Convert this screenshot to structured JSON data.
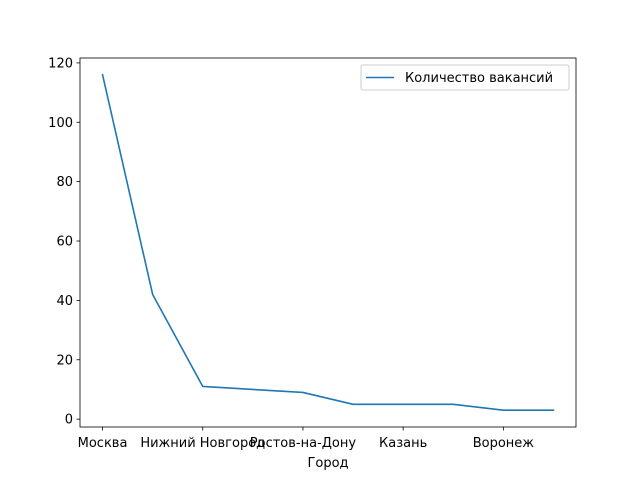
{
  "chart_data": {
    "type": "line",
    "categories": [
      "Москва",
      "Нижний Новгород",
      "Ростов-на-Дону",
      "Казань",
      "Воронеж"
    ],
    "x": [
      0,
      1,
      2,
      3,
      4,
      5,
      6,
      7,
      8,
      9
    ],
    "series": [
      {
        "name": "Количество вакансий",
        "values": [
          116,
          42,
          11,
          10,
          9,
          5,
          5,
          5,
          3,
          3
        ],
        "color": "#1f77b4"
      }
    ],
    "xticks": [
      0,
      2,
      4,
      6,
      8
    ],
    "yticks": [
      0,
      20,
      40,
      60,
      80,
      100,
      120
    ],
    "xlabel": "Город",
    "ylabel": "",
    "title": "",
    "xlim": [
      -0.45,
      9.45
    ],
    "ylim": [
      -2.65,
      121.65
    ],
    "grid": false,
    "legend_position": "upper right"
  }
}
